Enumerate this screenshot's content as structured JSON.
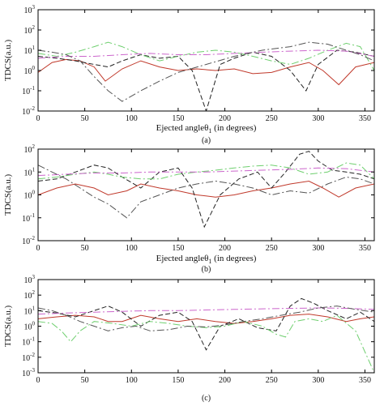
{
  "colors": {
    "red": "#c0392b",
    "black": "#222222",
    "green": "#6fcf6f",
    "magenta": "#cc66cc",
    "darkgray": "#555555",
    "axis": "#000000"
  },
  "chart_data": [
    {
      "type": "line",
      "panel_label": "(a)",
      "xlabel": "Ejected angleθ",
      "xlabel_sub": "1",
      "xlabel_tail": " (in degrees)",
      "ylabel": "TDCS(a.u.)",
      "xlim": [
        0,
        360
      ],
      "ylog": true,
      "ylim_exp": [
        -2,
        3
      ],
      "xticks": [
        0,
        50,
        100,
        150,
        200,
        250,
        300,
        350
      ],
      "series": [
        {
          "color": "red",
          "dash": "",
          "x": [
            0,
            15,
            30,
            45,
            60,
            72,
            90,
            110,
            130,
            150,
            170,
            190,
            210,
            230,
            250,
            270,
            290,
            305,
            322,
            340,
            360
          ],
          "y": [
            0.8,
            2.5,
            3.5,
            3,
            1.5,
            0.3,
            1.2,
            3,
            1.5,
            1,
            1.2,
            1,
            1.2,
            0.7,
            0.8,
            1.5,
            2.5,
            1,
            0.2,
            1.5,
            2.5
          ]
        },
        {
          "color": "black",
          "dash": "6 3",
          "x": [
            0,
            20,
            40,
            60,
            75,
            90,
            110,
            130,
            150,
            165,
            180,
            195,
            210,
            230,
            250,
            270,
            287,
            300,
            320,
            340,
            360
          ],
          "y": [
            5,
            4,
            3,
            2,
            1.5,
            3,
            6,
            4,
            5,
            1,
            0.01,
            2,
            4,
            8,
            5,
            1,
            0.1,
            2,
            10,
            8,
            5
          ]
        },
        {
          "color": "green",
          "dash": "9 3 2 3",
          "x": [
            0,
            20,
            40,
            60,
            75,
            90,
            110,
            130,
            150,
            170,
            190,
            210,
            230,
            250,
            270,
            290,
            310,
            330,
            345,
            360
          ],
          "y": [
            7,
            5,
            8,
            15,
            25,
            15,
            6,
            3,
            5,
            8,
            10,
            8,
            5,
            3,
            2,
            4,
            10,
            22,
            15,
            1
          ]
        },
        {
          "color": "magenta",
          "dash": "9 3 2 3",
          "x": [
            0,
            30,
            60,
            90,
            120,
            150,
            180,
            210,
            240,
            270,
            300,
            330,
            360
          ],
          "y": [
            4,
            5,
            5,
            6,
            7,
            6,
            6,
            7,
            8,
            9,
            10,
            9,
            5
          ]
        },
        {
          "color": "darkgray",
          "dash": "9 3 2 3",
          "x": [
            0,
            15,
            30,
            45,
            60,
            75,
            90,
            110,
            130,
            150,
            180,
            210,
            240,
            270,
            290,
            310,
            330,
            345,
            360
          ],
          "y": [
            10,
            8,
            6,
            3,
            0.5,
            0.1,
            0.03,
            0.1,
            0.3,
            0.8,
            2,
            5,
            10,
            15,
            25,
            20,
            10,
            6,
            3
          ]
        }
      ]
    },
    {
      "type": "line",
      "panel_label": "(b)",
      "xlabel": "Ejected angleθ",
      "xlabel_sub": "1",
      "xlabel_tail": " (in degrees)",
      "ylabel": "TDCS(a.u.)",
      "xlim": [
        0,
        360
      ],
      "ylog": true,
      "ylim_exp": [
        -2,
        2
      ],
      "xticks": [
        0,
        50,
        100,
        150,
        200,
        250,
        300,
        350
      ],
      "series": [
        {
          "color": "red",
          "dash": "",
          "x": [
            0,
            20,
            40,
            60,
            75,
            95,
            110,
            130,
            150,
            170,
            190,
            210,
            230,
            250,
            270,
            290,
            305,
            322,
            340,
            360
          ],
          "y": [
            1,
            2,
            3,
            2,
            1,
            1.5,
            3,
            2,
            1.5,
            1,
            0.8,
            1,
            1.5,
            2,
            3,
            4,
            2,
            0.8,
            2,
            3
          ]
        },
        {
          "color": "black",
          "dash": "6 3",
          "x": [
            0,
            20,
            40,
            60,
            75,
            90,
            110,
            130,
            150,
            165,
            178,
            195,
            215,
            235,
            250,
            265,
            280,
            290,
            300,
            315,
            330,
            345,
            360
          ],
          "y": [
            4,
            5,
            10,
            20,
            15,
            6,
            2,
            10,
            15,
            2,
            0.04,
            1,
            5,
            10,
            2,
            10,
            60,
            80,
            30,
            12,
            10,
            8,
            5
          ]
        },
        {
          "color": "green",
          "dash": "9 3 2 3",
          "x": [
            0,
            20,
            40,
            60,
            75,
            90,
            110,
            130,
            150,
            170,
            190,
            210,
            230,
            250,
            270,
            290,
            310,
            330,
            345,
            360
          ],
          "y": [
            5,
            6,
            8,
            10,
            8,
            6,
            5,
            5,
            8,
            10,
            12,
            15,
            18,
            20,
            15,
            8,
            10,
            25,
            20,
            5
          ]
        },
        {
          "color": "magenta",
          "dash": "9 3 2 3",
          "x": [
            0,
            30,
            60,
            90,
            120,
            150,
            180,
            210,
            240,
            270,
            300,
            330,
            360
          ],
          "y": [
            7,
            8,
            9,
            9,
            10,
            10,
            10,
            11,
            12,
            13,
            15,
            14,
            10
          ]
        },
        {
          "color": "darkgray",
          "dash": "9 3 2 3",
          "x": [
            0,
            15,
            30,
            45,
            60,
            75,
            95,
            110,
            130,
            150,
            170,
            190,
            210,
            230,
            250,
            270,
            290,
            310,
            330,
            345,
            360
          ],
          "y": [
            20,
            10,
            5,
            2,
            0.8,
            0.4,
            0.1,
            0.5,
            1,
            2,
            3,
            4,
            3,
            2,
            1,
            1.5,
            1.2,
            3,
            6,
            5,
            3
          ]
        }
      ]
    },
    {
      "type": "line",
      "panel_label": "(c)",
      "xlabel": "",
      "xlabel_sub": "",
      "xlabel_tail": "",
      "ylabel": "TDCS(a.u.)",
      "xlim": [
        0,
        360
      ],
      "ylog": true,
      "ylim_exp": [
        -3,
        3
      ],
      "xticks": [
        0,
        50,
        100,
        150,
        200,
        250,
        300,
        350
      ],
      "series": [
        {
          "color": "red",
          "dash": "",
          "x": [
            0,
            20,
            40,
            60,
            75,
            90,
            110,
            130,
            150,
            170,
            190,
            210,
            230,
            250,
            270,
            290,
            310,
            330,
            345,
            360
          ],
          "y": [
            3,
            4,
            5,
            4,
            2,
            2,
            5,
            3,
            2,
            3,
            2,
            1.5,
            2,
            3,
            5,
            6,
            4,
            2,
            3,
            4
          ]
        },
        {
          "color": "black",
          "dash": "6 3",
          "x": [
            0,
            20,
            40,
            60,
            75,
            90,
            110,
            130,
            150,
            165,
            180,
            195,
            215,
            235,
            255,
            270,
            282,
            295,
            310,
            330,
            345,
            360
          ],
          "y": [
            10,
            7,
            4,
            10,
            20,
            8,
            1,
            5,
            8,
            2,
            0.03,
            1,
            3,
            0.8,
            0.5,
            20,
            60,
            30,
            10,
            3,
            8,
            2
          ]
        },
        {
          "color": "green",
          "dash": "9 3 2 3",
          "x": [
            0,
            15,
            25,
            35,
            45,
            60,
            80,
            100,
            120,
            140,
            160,
            180,
            200,
            220,
            240,
            255,
            265,
            275,
            290,
            305,
            320,
            340,
            360
          ],
          "y": [
            2,
            1.5,
            0.5,
            0.1,
            0.5,
            2,
            1.5,
            1,
            2,
            1.5,
            1,
            0.8,
            1,
            2,
            1,
            0.3,
            0.2,
            2,
            3,
            2,
            5,
            0.5,
            0.001
          ]
        },
        {
          "color": "magenta",
          "dash": "9 3 2 3",
          "x": [
            0,
            30,
            60,
            90,
            120,
            150,
            180,
            210,
            240,
            270,
            300,
            330,
            360
          ],
          "y": [
            6,
            7,
            8,
            9,
            10,
            10,
            11,
            12,
            13,
            14,
            15,
            14,
            12
          ]
        },
        {
          "color": "darkgray",
          "dash": "9 3 2 3",
          "x": [
            0,
            15,
            30,
            45,
            60,
            75,
            90,
            105,
            120,
            140,
            160,
            180,
            200,
            220,
            240,
            260,
            280,
            300,
            320,
            340,
            360
          ],
          "y": [
            15,
            10,
            5,
            2,
            1,
            0.5,
            0.8,
            1,
            0.5,
            0.6,
            1,
            0.9,
            1.2,
            2,
            3,
            5,
            8,
            15,
            20,
            12,
            8
          ]
        }
      ]
    }
  ]
}
